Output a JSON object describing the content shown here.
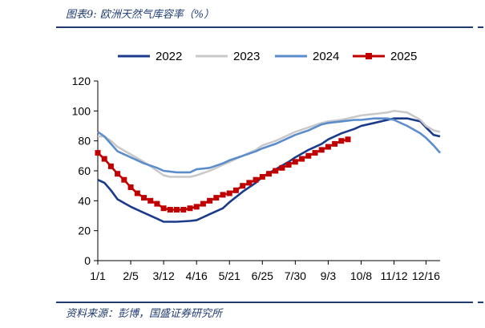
{
  "header": {
    "title": "图表9:  欧洲天然气库容率（%）"
  },
  "footer": {
    "source": "资料来源：彭博，国盛证券研究所"
  },
  "chart_data": {
    "type": "line",
    "title": "欧洲天然气库容率（%）",
    "xlabel": "",
    "ylabel": "",
    "x_ticks": [
      "1/1",
      "2/5",
      "3/12",
      "4/16",
      "5/21",
      "6/25",
      "7/30",
      "9/3",
      "10/8",
      "11/12",
      "12/16"
    ],
    "ylim": [
      0,
      120
    ],
    "y_ticks": [
      0,
      20,
      40,
      60,
      80,
      100,
      120
    ],
    "legend_position": "top",
    "grid": false,
    "series": [
      {
        "name": "2022",
        "color": "#1a3a8c",
        "x": [
          "1/1",
          "1/8",
          "1/15",
          "1/22",
          "2/5",
          "2/19",
          "3/5",
          "3/12",
          "3/26",
          "4/9",
          "4/16",
          "4/30",
          "5/14",
          "5/21",
          "6/4",
          "6/18",
          "6/25",
          "7/9",
          "7/23",
          "7/30",
          "8/13",
          "8/27",
          "9/3",
          "9/17",
          "10/1",
          "10/8",
          "10/22",
          "11/5",
          "11/12",
          "11/26",
          "12/10",
          "12/16",
          "12/24",
          "12/31"
        ],
        "values": [
          54,
          52,
          47,
          41,
          36,
          32,
          28,
          26,
          26,
          26.5,
          27,
          31,
          35,
          39,
          46,
          52,
          56,
          61,
          66,
          69,
          74,
          78,
          81,
          85,
          88,
          90,
          92,
          94,
          95,
          95,
          93,
          89,
          84,
          83
        ]
      },
      {
        "name": "2023",
        "color": "#c8c8c8",
        "x": [
          "1/1",
          "1/8",
          "1/15",
          "1/22",
          "2/5",
          "2/19",
          "3/5",
          "3/12",
          "3/19",
          "3/26",
          "4/9",
          "4/16",
          "4/30",
          "5/14",
          "5/21",
          "6/4",
          "6/18",
          "6/25",
          "7/9",
          "7/23",
          "7/30",
          "8/13",
          "8/27",
          "9/3",
          "9/17",
          "10/1",
          "10/8",
          "10/22",
          "11/5",
          "11/12",
          "11/26",
          "12/10",
          "12/16",
          "12/24",
          "12/31"
        ],
        "values": [
          83,
          83,
          80,
          76,
          71,
          66,
          60,
          57,
          56,
          56,
          56,
          57,
          60,
          64,
          66,
          70,
          74,
          77,
          80,
          84,
          86,
          89,
          92,
          93,
          94,
          96,
          97,
          98,
          99,
          100,
          99,
          94,
          90,
          87,
          86
        ]
      },
      {
        "name": "2024",
        "color": "#5b8ccc",
        "x": [
          "1/1",
          "1/8",
          "1/15",
          "1/22",
          "2/5",
          "2/19",
          "3/5",
          "3/12",
          "3/26",
          "4/9",
          "4/16",
          "4/30",
          "5/14",
          "5/21",
          "6/4",
          "6/18",
          "6/25",
          "7/9",
          "7/23",
          "7/30",
          "8/13",
          "8/27",
          "9/3",
          "9/17",
          "10/1",
          "10/8",
          "10/22",
          "11/5",
          "11/12",
          "11/26",
          "12/10",
          "12/16",
          "12/24",
          "12/31"
        ],
        "values": [
          86,
          83,
          78,
          73,
          69,
          65,
          62,
          60,
          59,
          59,
          61,
          62,
          65,
          67,
          70,
          73,
          75,
          78,
          82,
          84,
          87,
          91,
          92,
          93,
          94,
          94,
          95,
          95,
          94,
          90,
          85,
          82,
          77,
          72
        ]
      },
      {
        "name": "2025",
        "color": "#c00000",
        "x": [
          "1/1",
          "1/8",
          "1/15",
          "1/22",
          "1/29",
          "2/5",
          "2/12",
          "2/19",
          "2/26",
          "3/5",
          "3/12",
          "3/19",
          "3/26",
          "4/2",
          "4/9",
          "4/16",
          "4/23",
          "4/30",
          "5/7",
          "5/14",
          "5/21",
          "5/28",
          "6/4",
          "6/11",
          "6/18",
          "6/25",
          "7/2",
          "7/9",
          "7/16",
          "7/23",
          "7/30",
          "8/6",
          "8/13",
          "8/20",
          "8/27",
          "9/3",
          "9/10",
          "9/17",
          "9/24"
        ],
        "values": [
          72,
          68,
          63,
          58,
          54,
          49,
          45,
          42,
          40,
          38,
          35,
          34,
          34,
          34,
          35,
          36,
          38,
          40,
          42,
          44,
          45,
          47,
          50,
          52,
          54,
          56,
          58,
          60,
          62,
          64,
          66,
          68,
          70,
          72,
          74,
          76,
          78,
          80,
          81
        ]
      }
    ]
  }
}
